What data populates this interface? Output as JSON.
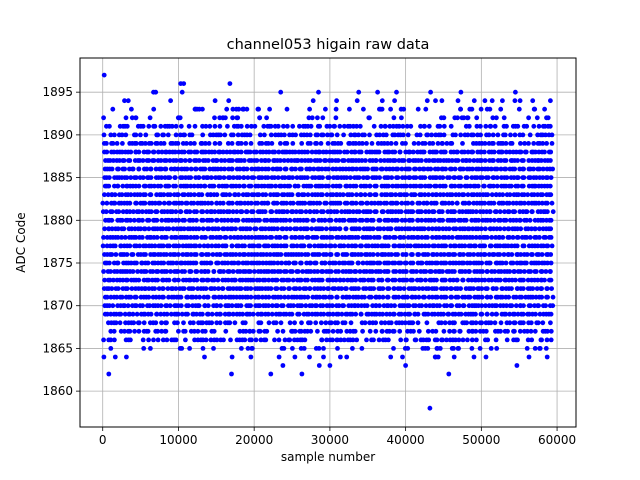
{
  "chart_data": {
    "type": "scatter",
    "title": "channel053 higain raw data",
    "xlabel": "sample number",
    "ylabel": "ADC Code",
    "xlim": [
      -3000,
      62500
    ],
    "ylim": [
      1855.8,
      1899.0
    ],
    "x_ticks": [
      0,
      10000,
      20000,
      30000,
      40000,
      50000,
      60000
    ],
    "y_ticks": [
      1860,
      1865,
      1870,
      1875,
      1880,
      1885,
      1890,
      1895
    ],
    "grid": true,
    "marker_color": "#0000ff",
    "x_range": [
      0,
      59500
    ],
    "dense_codes": [
      1866,
      1867,
      1868,
      1869,
      1870,
      1871,
      1872,
      1873,
      1874,
      1875,
      1876,
      1877,
      1878,
      1879,
      1880,
      1881,
      1882,
      1883,
      1884,
      1885,
      1886,
      1887,
      1888,
      1889,
      1890,
      1891
    ],
    "sparse_codes": [
      1864,
      1865,
      1892,
      1893,
      1894
    ],
    "outliers": [
      {
        "x": 200,
        "y": 1897
      },
      {
        "x": 800,
        "y": 1862
      },
      {
        "x": 43200,
        "y": 1858
      },
      {
        "x": 10300,
        "y": 1896
      },
      {
        "x": 10700,
        "y": 1896
      },
      {
        "x": 16800,
        "y": 1896
      },
      {
        "x": 6700,
        "y": 1895
      },
      {
        "x": 7000,
        "y": 1895
      },
      {
        "x": 10500,
        "y": 1895
      },
      {
        "x": 23500,
        "y": 1895
      },
      {
        "x": 28500,
        "y": 1895
      },
      {
        "x": 33800,
        "y": 1895
      },
      {
        "x": 36300,
        "y": 1895
      },
      {
        "x": 38800,
        "y": 1895
      },
      {
        "x": 43300,
        "y": 1895
      },
      {
        "x": 47300,
        "y": 1895
      },
      {
        "x": 54500,
        "y": 1895
      },
      {
        "x": 17000,
        "y": 1862
      },
      {
        "x": 22200,
        "y": 1862
      },
      {
        "x": 26300,
        "y": 1862
      },
      {
        "x": 45700,
        "y": 1862
      },
      {
        "x": 23800,
        "y": 1863
      },
      {
        "x": 28600,
        "y": 1863
      },
      {
        "x": 30000,
        "y": 1863
      },
      {
        "x": 40000,
        "y": 1863
      },
      {
        "x": 54700,
        "y": 1863
      }
    ]
  }
}
